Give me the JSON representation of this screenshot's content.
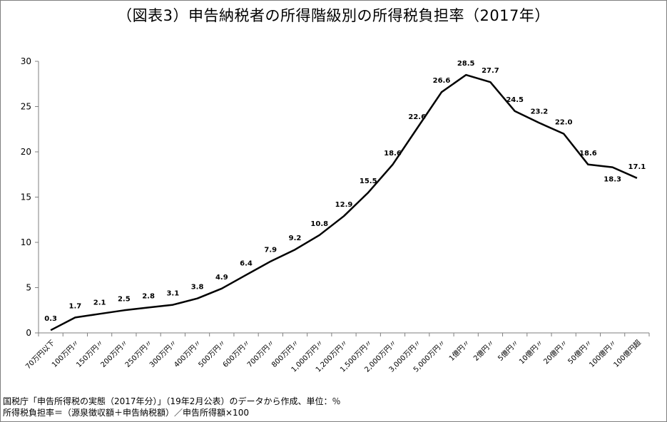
{
  "title": "（図表3）申告納税者の所得階級別の所得税負担率（2017年）",
  "chart_data": {
    "type": "line",
    "title": "（図表3）申告納税者の所得階級別の所得税負担率（2017年）",
    "categories": [
      "70万円以下",
      "100万円〃",
      "150万円〃",
      "200万円〃",
      "250万円〃",
      "300万円〃",
      "400万円〃",
      "500万円〃",
      "600万円〃",
      "700万円〃",
      "800万円〃",
      "1,000万円〃",
      "1,200万円〃",
      "1,500万円〃",
      "2,000万円〃",
      "3,000万円〃",
      "5,000万円〃",
      "1億円〃",
      "2億円〃",
      "5億円〃",
      "10億円〃",
      "20億円〃",
      "50億円〃",
      "100億円〃",
      "100億円超"
    ],
    "values": [
      0.3,
      1.7,
      2.1,
      2.5,
      2.8,
      3.1,
      3.8,
      4.9,
      6.4,
      7.9,
      9.2,
      10.8,
      12.9,
      15.5,
      18.6,
      22.6,
      26.6,
      28.5,
      27.7,
      24.5,
      23.2,
      22.0,
      18.6,
      18.3,
      17.1
    ],
    "value_labels": [
      "0.3",
      "1.7",
      "2.1",
      "2.5",
      "2.8",
      "3.1",
      "3.8",
      "4.9",
      "6.4",
      "7.9",
      "9.2",
      "10.8",
      "12.9",
      "15.5",
      "18.6",
      "22.6",
      "26.6",
      "28.5",
      "27.7",
      "24.5",
      "23.2",
      "22.0",
      "18.6",
      "18.3",
      "17.1"
    ],
    "ylim": [
      0,
      30
    ],
    "yticks": [
      "0",
      "5",
      "10",
      "15",
      "20",
      "25",
      "30"
    ],
    "xlabel": "",
    "ylabel": "",
    "grid": false,
    "line_color": "#000000"
  },
  "notes": [
    "国税庁「申告所得税の実態（2017年分）」（19年2月公表）のデータから作成、単位：％",
    "所得税負担率＝（源泉徴収額＋申告納税額）／申告所得額×100"
  ]
}
